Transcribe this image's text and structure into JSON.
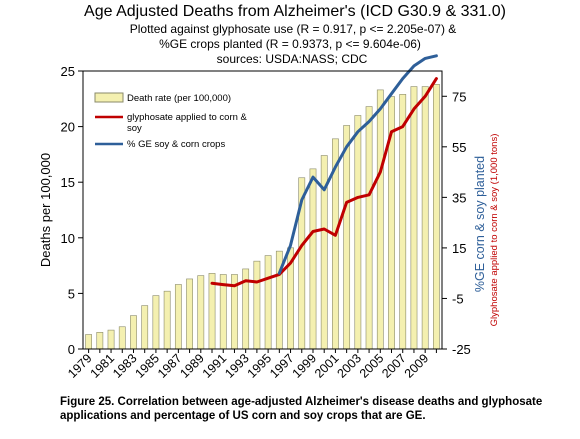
{
  "chart_data": {
    "type": "bar",
    "title": "Age Adjusted Deaths from Alzheimer's (ICD G30.9 & 331.0)",
    "subtitle_lines": [
      "Plotted against glyphosate use (R = 0.917, p <= 2.205e-07) &",
      "%GE crops planted (R = 0.9373, p <= 9.604e-06)",
      "sources: USDA:NASS; CDC"
    ],
    "ylabel": "Deaths per 100,000",
    "y2label": "%GE corn & soy planted",
    "y3label": "Glyphosate applied to corn & soy (1,000 tons)",
    "ylim": [
      0,
      25
    ],
    "y2lim": [
      -25,
      85
    ],
    "yticks": [
      0,
      5,
      10,
      15,
      20,
      25
    ],
    "y2ticks": [
      -25,
      -5,
      15,
      35,
      55,
      75
    ],
    "y2ticklabels": [
      "-25",
      "-5",
      "15",
      "35",
      "55",
      "75"
    ],
    "xticklabels": [
      "1979",
      "1981",
      "1983",
      "1985",
      "1987",
      "1989",
      "1991",
      "1993",
      "1995",
      "1997",
      "1999",
      "2001",
      "2003",
      "2005",
      "2007",
      "2009"
    ],
    "categories": [
      1979,
      1980,
      1981,
      1982,
      1983,
      1984,
      1985,
      1986,
      1987,
      1988,
      1989,
      1990,
      1991,
      1992,
      1993,
      1994,
      1995,
      1996,
      1997,
      1998,
      1999,
      2000,
      2001,
      2002,
      2003,
      2004,
      2005,
      2006,
      2007,
      2008,
      2009,
      2010
    ],
    "series": [
      {
        "name": "Death rate (per 100,000)",
        "axis": "left",
        "kind": "bar",
        "color": "#f4f0b0",
        "values": [
          1.3,
          1.5,
          1.7,
          2.0,
          3.0,
          3.9,
          4.8,
          5.2,
          5.8,
          6.3,
          6.6,
          6.8,
          6.7,
          6.7,
          7.2,
          7.9,
          8.4,
          8.8,
          9.1,
          15.4,
          16.2,
          17.4,
          18.9,
          20.1,
          21.0,
          21.8,
          23.3,
          22.7,
          22.9,
          23.6,
          23.6,
          23.8
        ]
      },
      {
        "name": "glyphosate applied to corn & soy",
        "axis": "right",
        "kind": "line",
        "color": "#c00000",
        "x": [
          1990,
          1991,
          1992,
          1993,
          1994,
          1995,
          1996,
          1997,
          1998,
          1999,
          2000,
          2001,
          2002,
          2003,
          2004,
          2005,
          2006,
          2007,
          2008,
          2009,
          2010
        ],
        "values": [
          1,
          0.5,
          0,
          2,
          1.5,
          3,
          4.5,
          9,
          16,
          21.5,
          22.5,
          20,
          33,
          35,
          36,
          45,
          61,
          63,
          70,
          75,
          82
        ]
      },
      {
        "name": "% GE soy & corn crops",
        "axis": "right",
        "kind": "line",
        "color": "#2e5f99",
        "x": [
          1996,
          1997,
          1998,
          1999,
          2000,
          2001,
          2002,
          2003,
          2004,
          2005,
          2006,
          2007,
          2008,
          2009,
          2010
        ],
        "values": [
          5,
          16,
          34,
          43,
          38,
          47,
          55,
          61,
          65,
          70,
          76,
          82,
          87,
          90,
          91
        ]
      }
    ],
    "legend_position": "top-left",
    "grid": false,
    "colors": {
      "bar_fill": "#f4f0b0",
      "bar_stroke": "#8a8a6a",
      "glyphosate": "#c00000",
      "ge": "#2e5f99"
    }
  },
  "caption": "Figure 25. Correlation between age-adjusted Alzheimer's disease deaths and glyphosate applications and percentage of US corn and soy crops that are GE."
}
